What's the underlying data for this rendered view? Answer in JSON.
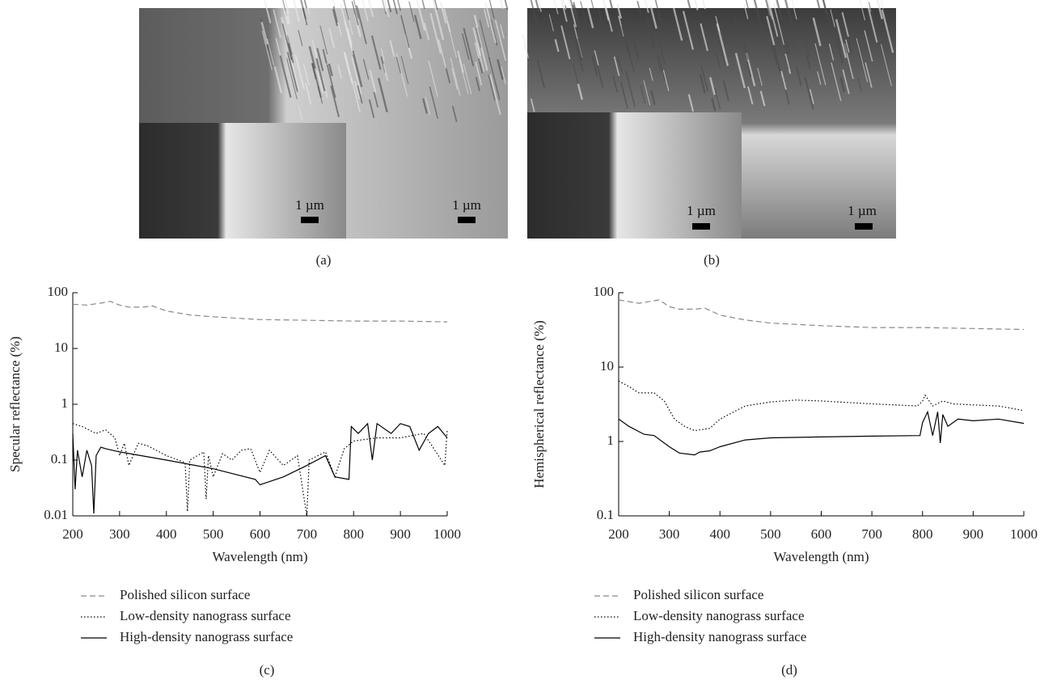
{
  "images": [
    {
      "label": "(a)",
      "scale_bars": [
        "1 µm",
        "1 µm"
      ]
    },
    {
      "label": "(b)",
      "scale_bars": [
        "1 µm",
        "1 µm"
      ]
    }
  ],
  "chart_data": [
    {
      "type": "line",
      "panel_label": "(c)",
      "x_label": "Wavelength (nm)",
      "y_label": "Specular reflectance (%)",
      "xlim": [
        200,
        1000
      ],
      "xticks": [
        200,
        300,
        400,
        500,
        600,
        700,
        800,
        900,
        1000
      ],
      "ylim": [
        0.01,
        100
      ],
      "yticks": [
        100,
        10,
        1,
        0.1,
        0.01
      ],
      "log_y": true,
      "legend": "below",
      "series": [
        {
          "name": "Polished silicon surface",
          "color": "#888888",
          "line_style": "dashed",
          "x": [
            200,
            230,
            260,
            280,
            300,
            320,
            350,
            370,
            400,
            450,
            500,
            600,
            700,
            800,
            900,
            1000
          ],
          "values": [
            62,
            60,
            65,
            70,
            60,
            55,
            55,
            58,
            47,
            40,
            37,
            33,
            32,
            31,
            31,
            30
          ]
        },
        {
          "name": "Low-density nanograss surface",
          "color": "#000000",
          "line_style": "dotted",
          "x": [
            200,
            220,
            250,
            270,
            290,
            300,
            310,
            320,
            340,
            360,
            400,
            440,
            445,
            450,
            480,
            485,
            490,
            500,
            520,
            540,
            560,
            580,
            600,
            620,
            650,
            680,
            700,
            705,
            740,
            760,
            780,
            800,
            850,
            900,
            950,
            995,
            1000
          ],
          "values": [
            0.45,
            0.4,
            0.3,
            0.35,
            0.25,
            0.12,
            0.2,
            0.08,
            0.2,
            0.18,
            0.12,
            0.09,
            0.012,
            0.1,
            0.14,
            0.02,
            0.12,
            0.05,
            0.13,
            0.1,
            0.15,
            0.16,
            0.06,
            0.15,
            0.08,
            0.12,
            0.01,
            0.1,
            0.14,
            0.05,
            0.16,
            0.22,
            0.25,
            0.25,
            0.3,
            0.08,
            0.35
          ]
        },
        {
          "name": "High-density nanograss surface",
          "color": "#000000",
          "line_style": "solid",
          "x": [
            200,
            205,
            210,
            220,
            230,
            240,
            245,
            250,
            260,
            270,
            300,
            400,
            500,
            590,
            600,
            650,
            700,
            740,
            760,
            790,
            795,
            810,
            830,
            840,
            850,
            880,
            900,
            920,
            940,
            960,
            980,
            1000
          ],
          "values": [
            0.3,
            0.03,
            0.15,
            0.05,
            0.15,
            0.08,
            0.011,
            0.12,
            0.17,
            0.16,
            0.14,
            0.1,
            0.07,
            0.045,
            0.036,
            0.05,
            0.08,
            0.12,
            0.05,
            0.045,
            0.4,
            0.3,
            0.45,
            0.1,
            0.45,
            0.3,
            0.45,
            0.4,
            0.15,
            0.3,
            0.4,
            0.25
          ]
        }
      ]
    },
    {
      "type": "line",
      "panel_label": "(d)",
      "x_label": "Wavelength (nm)",
      "y_label": "Hemispherical reflectance (%)",
      "xlim": [
        200,
        1000
      ],
      "xticks": [
        200,
        300,
        400,
        500,
        600,
        700,
        800,
        900,
        1000
      ],
      "ylim": [
        0.1,
        100
      ],
      "yticks": [
        100,
        10,
        1,
        0.1
      ],
      "log_y": true,
      "legend": "below",
      "series": [
        {
          "name": "Polished silicon surface",
          "color": "#888888",
          "line_style": "dashed",
          "x": [
            200,
            240,
            280,
            300,
            320,
            350,
            370,
            400,
            450,
            500,
            600,
            700,
            800,
            900,
            1000
          ],
          "values": [
            80,
            72,
            80,
            65,
            60,
            60,
            62,
            50,
            43,
            39,
            36,
            34,
            34,
            33,
            32
          ]
        },
        {
          "name": "Low-density nanograss surface",
          "color": "#000000",
          "line_style": "dotted",
          "x": [
            200,
            220,
            240,
            270,
            290,
            310,
            330,
            350,
            380,
            400,
            450,
            500,
            550,
            600,
            700,
            790,
            800,
            805,
            820,
            840,
            860,
            900,
            950,
            1000
          ],
          "values": [
            6.5,
            5.5,
            4.5,
            4.5,
            3.5,
            2,
            1.6,
            1.4,
            1.5,
            2,
            3,
            3.4,
            3.6,
            3.5,
            3.2,
            3,
            3.5,
            4.2,
            3,
            3.5,
            3.2,
            3.1,
            3,
            2.6
          ]
        },
        {
          "name": "High-density nanograss surface",
          "color": "#000000",
          "line_style": "solid",
          "x": [
            200,
            220,
            250,
            270,
            300,
            320,
            350,
            360,
            380,
            400,
            450,
            500,
            600,
            700,
            795,
            800,
            810,
            820,
            830,
            835,
            840,
            850,
            870,
            900,
            950,
            1000
          ],
          "values": [
            2,
            1.6,
            1.25,
            1.2,
            0.85,
            0.7,
            0.66,
            0.72,
            0.75,
            0.85,
            1.05,
            1.12,
            1.15,
            1.18,
            1.2,
            1.8,
            2.5,
            1.2,
            2.5,
            0.95,
            2.3,
            1.6,
            2,
            1.9,
            2,
            1.75
          ]
        }
      ]
    }
  ]
}
